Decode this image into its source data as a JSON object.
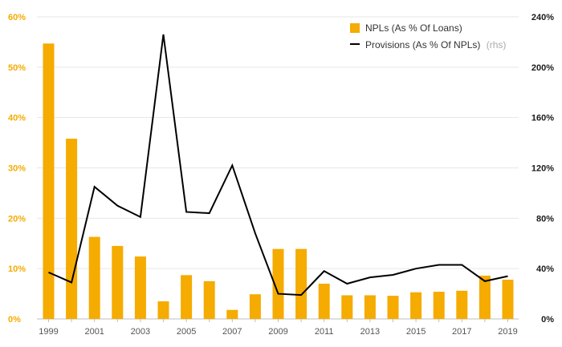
{
  "chart_data": {
    "type": "bar+line",
    "x": [
      1999,
      2000,
      2001,
      2002,
      2003,
      2004,
      2005,
      2006,
      2007,
      2008,
      2009,
      2010,
      2011,
      2012,
      2013,
      2014,
      2015,
      2016,
      2017,
      2018,
      2019
    ],
    "x_tick_labels": [
      "1999",
      "2001",
      "2003",
      "2005",
      "2007",
      "2009",
      "2011",
      "2013",
      "2015",
      "2017",
      "2019"
    ],
    "series": [
      {
        "name": "NPLs (As % Of Loans)",
        "type": "bar",
        "axis": "left",
        "color": "#f5ab00",
        "values": [
          54.7,
          35.8,
          16.3,
          14.5,
          12.4,
          3.5,
          8.7,
          7.5,
          1.8,
          4.9,
          13.9,
          13.9,
          7.0,
          4.7,
          4.7,
          4.6,
          5.3,
          5.4,
          5.6,
          8.6,
          7.8
        ]
      },
      {
        "name": "Provisions (As % Of NPLs)",
        "name_suffix": "(rhs)",
        "type": "line",
        "axis": "right",
        "color": "#000000",
        "values": [
          37,
          29,
          105,
          90,
          81,
          226,
          85,
          84,
          122,
          68,
          20,
          19,
          38,
          28,
          33,
          35,
          40,
          43,
          43,
          30,
          34
        ]
      }
    ],
    "y_left": {
      "ylim": [
        0,
        60
      ],
      "ticks": [
        "0%",
        "10%",
        "20%",
        "30%",
        "40%",
        "50%",
        "60%"
      ],
      "tick_color": "#f5ab00"
    },
    "y_right": {
      "ylim": [
        0,
        240
      ],
      "ticks": [
        "0%",
        "40%",
        "80%",
        "120%",
        "160%",
        "200%",
        "240%"
      ],
      "tick_color": "#1a1a1a"
    },
    "grid": true,
    "legend_position": "top-right"
  }
}
